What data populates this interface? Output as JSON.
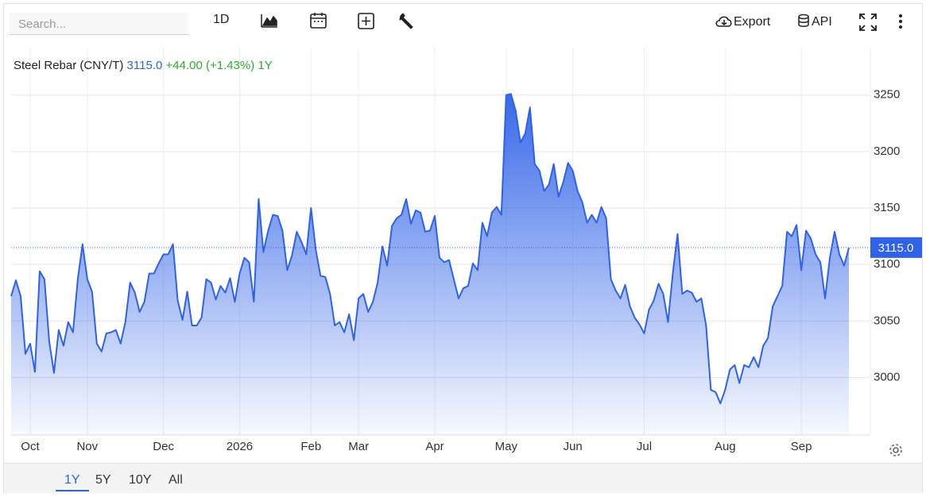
{
  "toolbar": {
    "search_placeholder": "Search...",
    "interval": "1D",
    "export": "Export",
    "api": "API"
  },
  "chart_data": {
    "type": "area",
    "title": "Steel Rebar (CNY/T)",
    "last_value_label": "3115.0",
    "change_label": "+44.00 (+1.43%)",
    "period": "1Y",
    "color": "#2f62e8",
    "categories": [
      null,
      null,
      null,
      null,
      "Oct",
      null,
      null,
      null,
      null,
      null,
      null,
      null,
      null,
      null,
      null,
      null,
      "Nov",
      null,
      null,
      null,
      null,
      null,
      null,
      null,
      null,
      null,
      null,
      null,
      null,
      null,
      null,
      null,
      "Dec",
      null,
      null,
      null,
      null,
      null,
      null,
      null,
      null,
      null,
      null,
      null,
      null,
      null,
      null,
      null,
      "2026",
      null,
      null,
      null,
      null,
      null,
      null,
      null,
      null,
      null,
      null,
      null,
      null,
      null,
      null,
      "Feb",
      null,
      null,
      null,
      null,
      null,
      null,
      null,
      null,
      null,
      "Mar",
      null,
      null,
      null,
      null,
      null,
      null,
      null,
      null,
      null,
      null,
      null,
      null,
      null,
      null,
      null,
      "Apr",
      null,
      null,
      null,
      null,
      null,
      null,
      null,
      null,
      null,
      null,
      null,
      null,
      null,
      null,
      "May",
      null,
      null,
      null,
      null,
      null,
      null,
      null,
      null,
      null,
      null,
      null,
      null,
      null,
      "Jun",
      null,
      null,
      null,
      null,
      null,
      null,
      null,
      null,
      null,
      null,
      null,
      null,
      null,
      null,
      "Jul",
      null,
      null,
      null,
      null,
      null,
      null,
      null,
      null,
      null,
      null,
      null,
      null,
      null,
      null,
      null,
      null,
      "Aug",
      null,
      null,
      null,
      null,
      null,
      null,
      null,
      null,
      null,
      null,
      null,
      null,
      null,
      null,
      null,
      "Sep",
      null,
      null,
      null,
      null,
      null,
      null,
      null,
      null,
      null,
      null
    ],
    "values": [
      3072,
      3086,
      3072,
      3021,
      3030,
      3005,
      3094,
      3087,
      3032,
      3004,
      3042,
      3028,
      3049,
      3040,
      3087,
      3118,
      3087,
      3076,
      3030,
      3023,
      3039,
      3040,
      3042,
      3030,
      3049,
      3084,
      3075,
      3058,
      3067,
      3092,
      3092,
      3101,
      3109,
      3109,
      3118,
      3068,
      3051,
      3076,
      3046,
      3046,
      3053,
      3087,
      3084,
      3069,
      3081,
      3075,
      3088,
      3067,
      3092,
      3106,
      3102,
      3067,
      3158,
      3111,
      3130,
      3144,
      3143,
      3130,
      3095,
      3108,
      3129,
      3120,
      3109,
      3150,
      3113,
      3090,
      3089,
      3074,
      3046,
      3049,
      3040,
      3056,
      3033,
      3070,
      3074,
      3058,
      3067,
      3084,
      3116,
      3099,
      3134,
      3141,
      3144,
      3158,
      3136,
      3148,
      3146,
      3129,
      3130,
      3143,
      3106,
      3102,
      3104,
      3087,
      3070,
      3079,
      3081,
      3101,
      3095,
      3137,
      3125,
      3146,
      3151,
      3144,
      3250,
      3251,
      3236,
      3208,
      3216,
      3239,
      3189,
      3183,
      3165,
      3171,
      3189,
      3160,
      3173,
      3190,
      3183,
      3165,
      3155,
      3137,
      3144,
      3137,
      3151,
      3141,
      3087,
      3077,
      3070,
      3082,
      3063,
      3053,
      3047,
      3039,
      3060,
      3068,
      3083,
      3074,
      3049,
      3092,
      3127,
      3074,
      3077,
      3075,
      3067,
      3070,
      3046,
      2989,
      2987,
      2977,
      2989,
      3007,
      3011,
      2995,
      3011,
      3009,
      3018,
      3009,
      3028,
      3035,
      3063,
      3072,
      3081,
      3129,
      3125,
      3135,
      3095,
      3130,
      3123,
      3109,
      3102,
      3070,
      3106,
      3129,
      3109,
      3099,
      3115
    ],
    "ylim": [
      2949,
      3292
    ],
    "yticks": [
      3000,
      3050,
      3100,
      3150,
      3200,
      3250
    ],
    "grid": true
  },
  "range_buttons": [
    "1Y",
    "5Y",
    "10Y",
    "All"
  ]
}
